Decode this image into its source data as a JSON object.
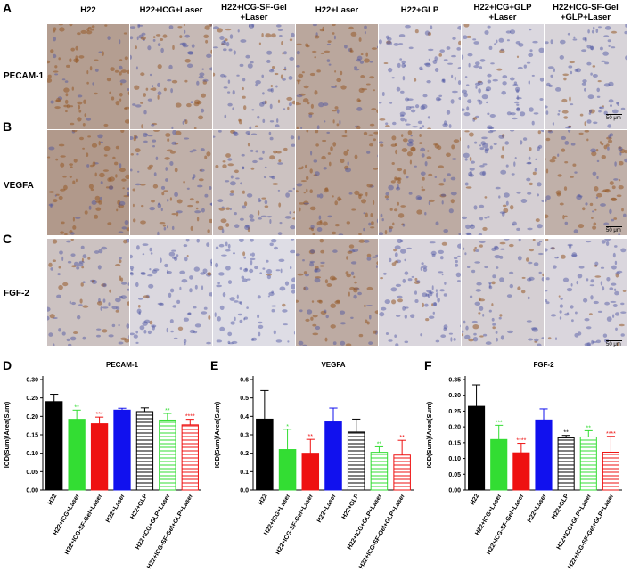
{
  "panel_letters": {
    "a": "A",
    "b": "B",
    "c": "C",
    "d": "D",
    "e": "E",
    "f": "F"
  },
  "column_headers": [
    [
      "H22"
    ],
    [
      "H22+ICG+Laser"
    ],
    [
      "H22+ICG-SF-Gel",
      "+Laser"
    ],
    [
      "H22+Laser"
    ],
    [
      "H22+GLP"
    ],
    [
      "H22+ICG+GLP",
      "+Laser"
    ],
    [
      "H22+ICG-SF-Gel",
      "+GLP+Laser"
    ]
  ],
  "row_labels": [
    "PECAM-1",
    "VEGFA",
    "FGF-2"
  ],
  "scale_bar_label": "50 μm",
  "colors": {
    "H22": "#000000",
    "H22+ICG+Laser": "#33dd33",
    "H22+ICG-SF-Gel+Laser": "#ee1111",
    "H22+Laser": "#1111ee",
    "H22+GLP": "#000000",
    "H22+ICG+GLP+Laser": "#33dd33",
    "H22+ICG-SF-Gel+GLP+Laser": "#ee1111"
  },
  "chart_data": [
    {
      "type": "bar",
      "title": "PECAM-1",
      "ylabel": "IOD(Sum)/Area(Sum)",
      "categories": [
        "H22",
        "H22+ICG+Laser",
        "H22+ICG-SF-Gel+Laser",
        "H22+Laser",
        "H22+GLP",
        "H22+ICG+GLP+Laser",
        "H22+ICG-SF-Gel+GLP+Laser"
      ],
      "values": [
        0.24,
        0.192,
        0.18,
        0.217,
        0.213,
        0.19,
        0.177
      ],
      "errors": [
        0.02,
        0.025,
        0.018,
        0.005,
        0.01,
        0.018,
        0.015
      ],
      "significance": [
        "",
        "**",
        "***",
        "",
        "",
        "**",
        "****"
      ],
      "fill": [
        "solid",
        "solid",
        "solid",
        "solid",
        "hatched",
        "hatched",
        "hatched"
      ],
      "ylim": [
        0,
        0.3
      ],
      "yticks": [
        "0.00",
        "0.05",
        "0.10",
        "0.15",
        "0.20",
        "0.25",
        "0.30"
      ]
    },
    {
      "type": "bar",
      "title": "VEGFA",
      "ylabel": "IOD(Sum)/Area(Sum)",
      "categories": [
        "H22",
        "H22+ICG+Laser",
        "H22+ICG-SF-Gel+Laser",
        "H22+Laser",
        "H22+GLP",
        "H22+ICG+GLP+Laser",
        "H22+ICG-SF-Gel+GLP+Laser"
      ],
      "values": [
        0.385,
        0.22,
        0.2,
        0.37,
        0.315,
        0.205,
        0.19
      ],
      "errors": [
        0.155,
        0.11,
        0.075,
        0.075,
        0.07,
        0.03,
        0.08
      ],
      "significance": [
        "",
        "*",
        "**",
        "",
        "",
        "**",
        "**"
      ],
      "fill": [
        "solid",
        "solid",
        "solid",
        "solid",
        "hatched",
        "hatched",
        "hatched"
      ],
      "ylim": [
        0,
        0.6
      ],
      "yticks": [
        "0.0",
        "0.1",
        "0.2",
        "0.3",
        "0.4",
        "0.5",
        "0.6"
      ]
    },
    {
      "type": "bar",
      "title": "FGF-2",
      "ylabel": "IOD(Sum)/Area(Sum)",
      "categories": [
        "H22",
        "H22+ICG+Laser",
        "H22+ICG-SF-Gel+Laser",
        "H22+Laser",
        "H22+GLP",
        "H22+ICG+GLP+Laser",
        "H22+ICG-SF-Gel+GLP+Laser"
      ],
      "values": [
        0.265,
        0.16,
        0.118,
        0.222,
        0.165,
        0.168,
        0.12
      ],
      "errors": [
        0.068,
        0.045,
        0.03,
        0.035,
        0.008,
        0.02,
        0.05
      ],
      "significance": [
        "",
        "***",
        "****",
        "",
        "**",
        "**",
        "****"
      ],
      "fill": [
        "solid",
        "solid",
        "solid",
        "solid",
        "hatched",
        "hatched",
        "hatched"
      ],
      "ylim": [
        0,
        0.35
      ],
      "yticks": [
        "0.00",
        "0.05",
        "0.10",
        "0.15",
        "0.20",
        "0.25",
        "0.30",
        "0.35"
      ]
    }
  ]
}
